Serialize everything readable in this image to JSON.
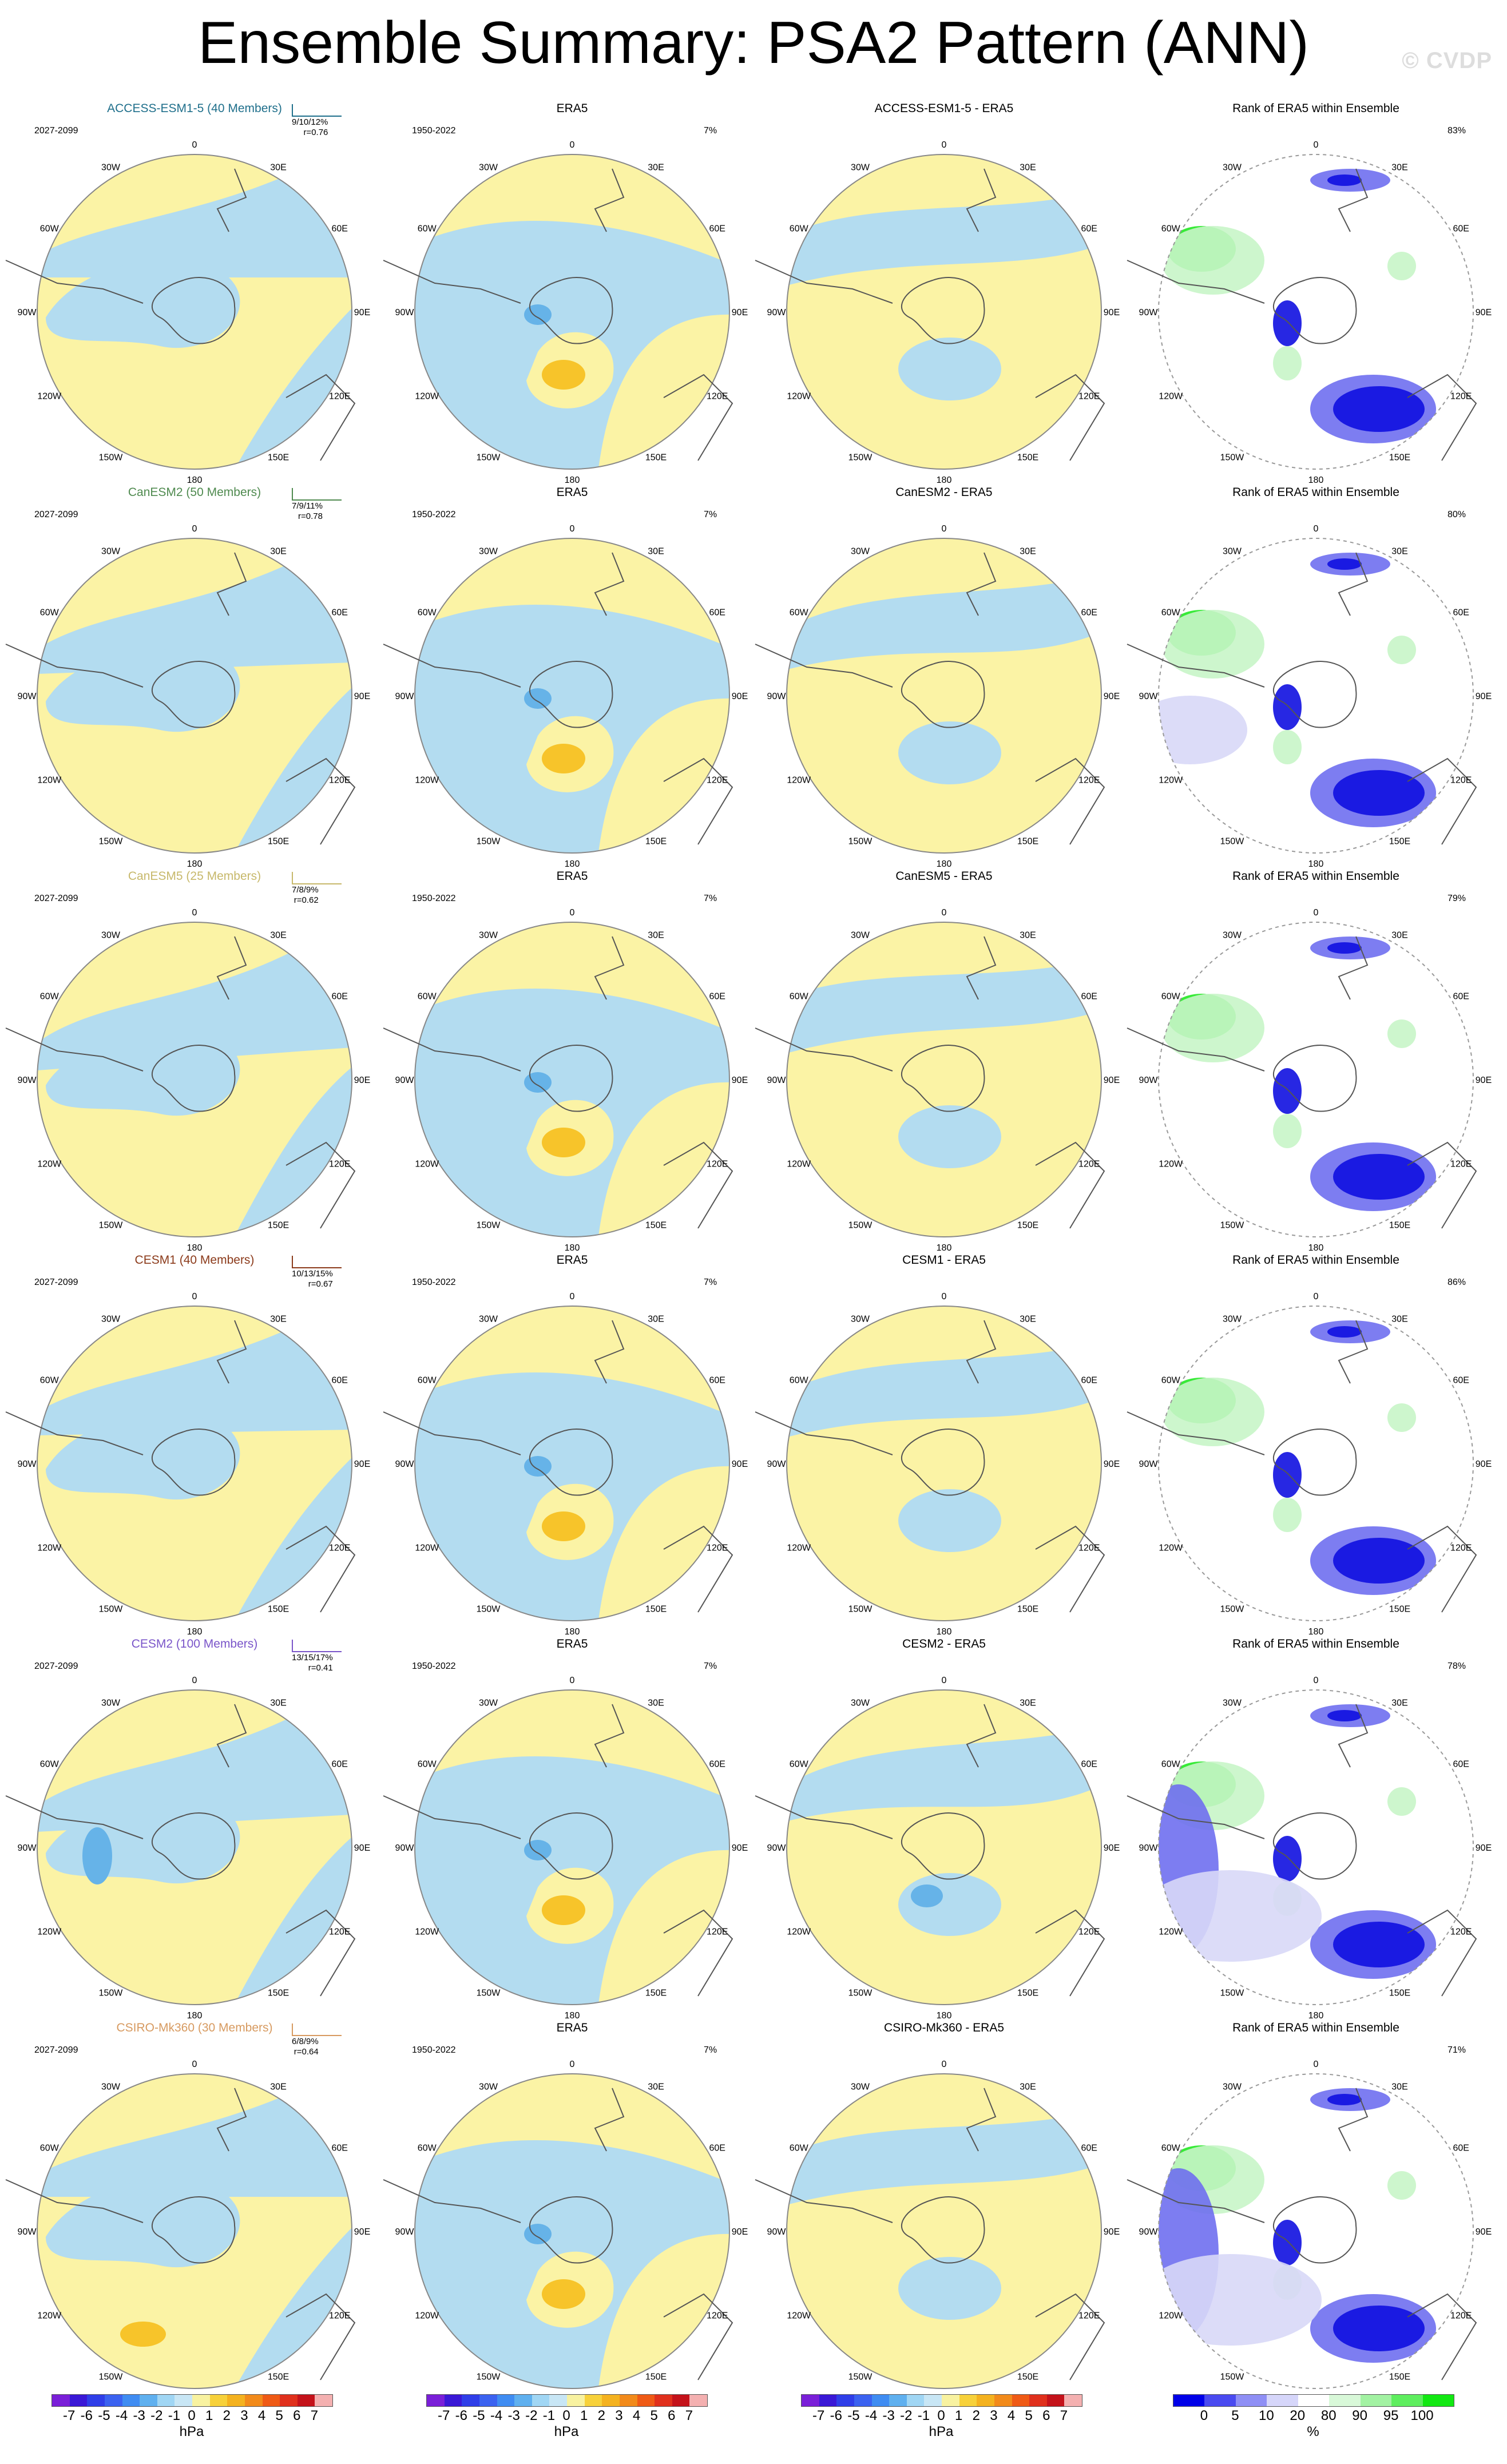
{
  "title": "Ensemble Summary: PSA2 Pattern (ANN)",
  "watermark": "© CVDP",
  "lon_labels": [
    "0",
    "30E",
    "60E",
    "90E",
    "120E",
    "150E",
    "180",
    "150W",
    "120W",
    "90W",
    "60W",
    "30W"
  ],
  "observed_period": "1950-2022",
  "observed_pct": "7%",
  "ensemble_period": "2027-2099",
  "rank_title": "Rank of ERA5 within Ensemble",
  "obs_title": "ERA5",
  "rows": [
    {
      "model": "ACCESS-ESM1-5 (40 Members)",
      "color": "#1f6f8b",
      "stats": "9/10/12%",
      "r": "r=0.76",
      "diff_title": "ACCESS-ESM1-5 - ERA5",
      "rank_pct": "83%"
    },
    {
      "model": "CanESM2 (50 Members)",
      "color": "#4f8a4f",
      "stats": "7/9/11%",
      "r": "r=0.78",
      "diff_title": "CanESM2 - ERA5",
      "rank_pct": "80%"
    },
    {
      "model": "CanESM5 (25 Members)",
      "color": "#c7b86a",
      "stats": "7/8/9%",
      "r": "r=0.62",
      "diff_title": "CanESM5 - ERA5",
      "rank_pct": "79%"
    },
    {
      "model": "CESM1 (40 Members)",
      "color": "#8b3a1a",
      "stats": "10/13/15%",
      "r": "r=0.67",
      "diff_title": "CESM1 - ERA5",
      "rank_pct": "86%"
    },
    {
      "model": "CESM2 (100 Members)",
      "color": "#7a55c9",
      "stats": "13/15/17%",
      "r": "r=0.41",
      "diff_title": "CESM2 - ERA5",
      "rank_pct": "78%"
    },
    {
      "model": "CSIRO-Mk360 (30 Members)",
      "color": "#d79a60",
      "stats": "6/8/9%",
      "r": "r=0.64",
      "diff_title": "CSIRO-Mk360 - ERA5",
      "rank_pct": "71%"
    }
  ],
  "colorbar_hpa": {
    "ticks": [
      "-7",
      "-6",
      "-5",
      "-4",
      "-3",
      "-2",
      "-1",
      "0",
      "1",
      "2",
      "3",
      "4",
      "5",
      "6",
      "7"
    ],
    "label": "hPa",
    "colors": [
      "#7a1fd8",
      "#3a18d6",
      "#2f3ee8",
      "#3b62f0",
      "#3f8cf2",
      "#5fb0ef",
      "#a0d6f4",
      "#c8e6f5",
      "#f8f2a0",
      "#f7d13a",
      "#f4b21f",
      "#f28a1a",
      "#ef5a15",
      "#e0301c",
      "#c4121a",
      "#f4b0b0"
    ]
  },
  "colorbar_pct": {
    "ticks": [
      "0",
      "5",
      "10",
      "20",
      "80",
      "90",
      "95",
      "100"
    ],
    "label": "%",
    "colors": [
      "#0000e8",
      "#4a4af0",
      "#8f8ff5",
      "#d6d6fa",
      "#ffffff",
      "#d8f8d8",
      "#a2f2a2",
      "#5eee5e",
      "#12e812"
    ]
  },
  "palette": {
    "blue": "#b3dcf0",
    "yellow": "#fbf3a5",
    "medblue": "#66b3e8",
    "orange": "#f7c42a",
    "rankblue": "#1010e0",
    "ranklight": "#d8d8f7",
    "rankmid": "#6f6ff0",
    "rankgreen": "#22e822",
    "ranklightgreen": "#c8f5c8"
  }
}
